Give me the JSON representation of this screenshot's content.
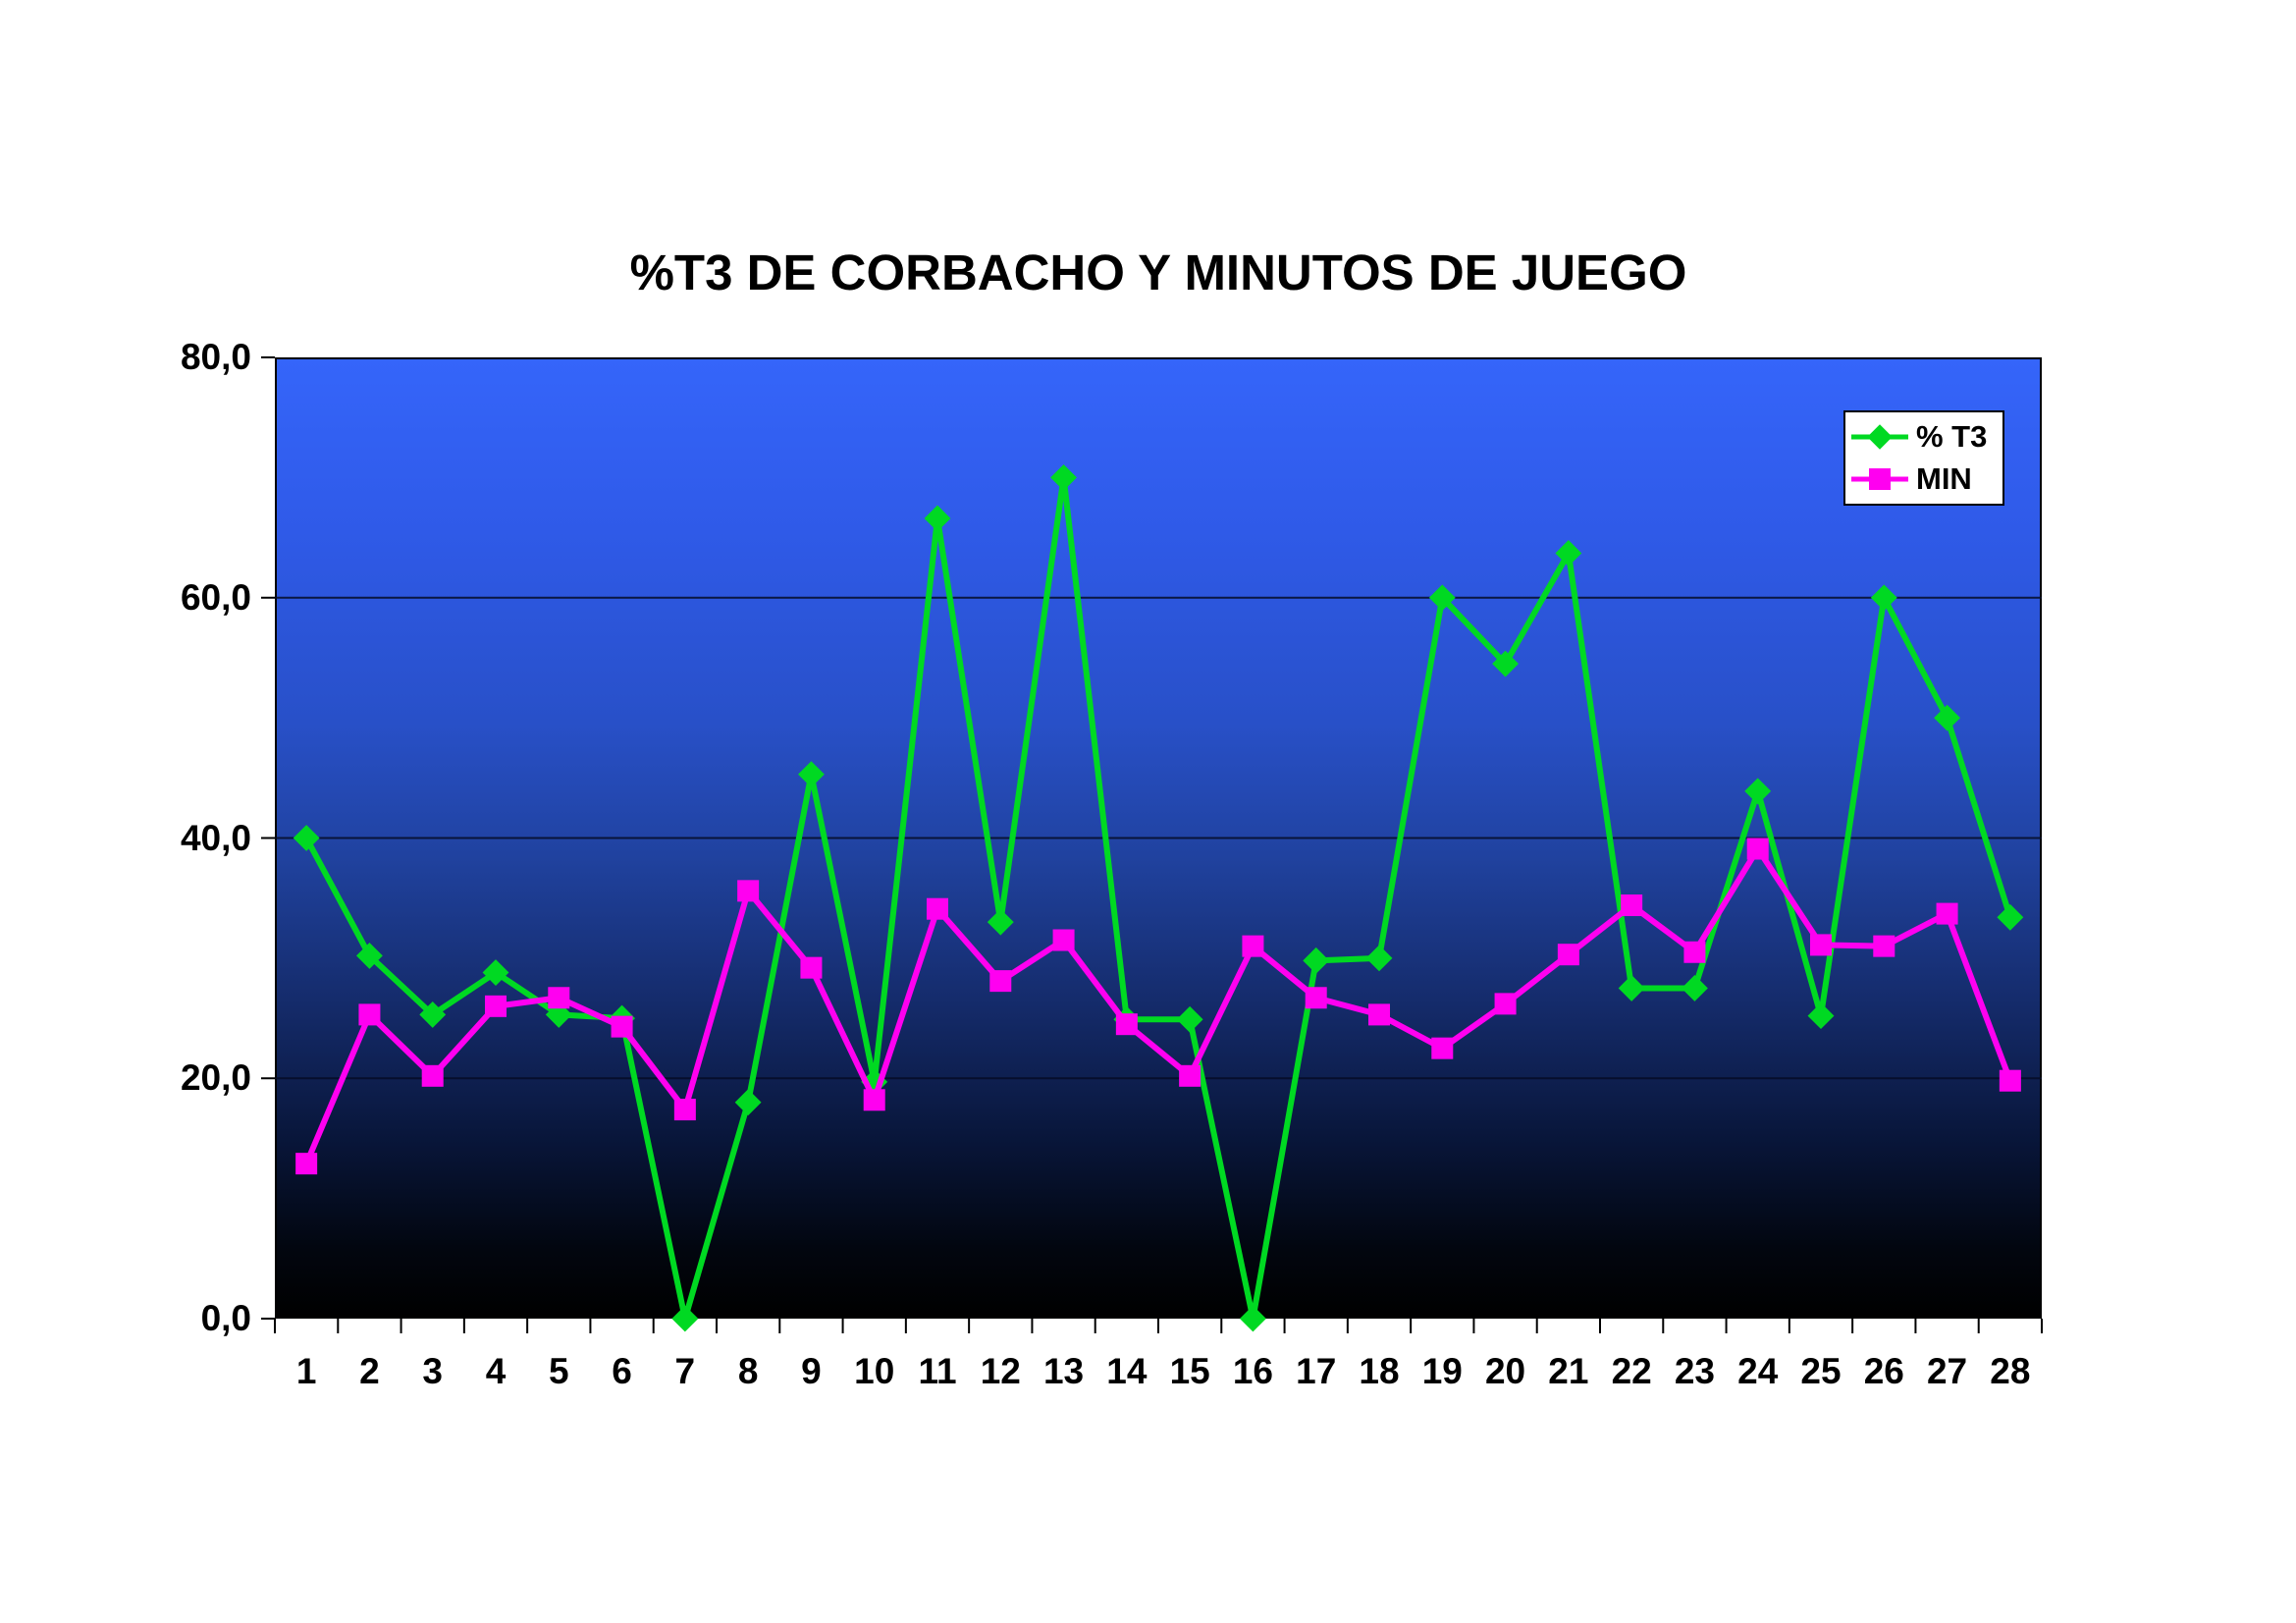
{
  "chart": {
    "title": "%T3 DE CORBACHO Y MINUTOS DE JUEGO"
  },
  "legend": {
    "entries": [
      {
        "label": "% T3",
        "marker": "diamond",
        "color": "#00d922"
      },
      {
        "label": "MIN",
        "marker": "square",
        "color": "#ff00f0"
      }
    ]
  },
  "chart_data": {
    "type": "line",
    "title": "%T3 DE CORBACHO Y MINUTOS DE JUEGO",
    "categories": [
      1,
      2,
      3,
      4,
      5,
      6,
      7,
      8,
      9,
      10,
      11,
      12,
      13,
      14,
      15,
      16,
      17,
      18,
      19,
      20,
      21,
      22,
      23,
      24,
      25,
      26,
      27,
      28
    ],
    "series": [
      {
        "name": "% T3",
        "color": "#00d922",
        "marker": "diamond",
        "values": [
          40.0,
          30.2,
          25.3,
          28.8,
          25.3,
          25.0,
          0.0,
          18.0,
          45.3,
          19.7,
          66.6,
          33.0,
          70.0,
          24.9,
          24.9,
          0.0,
          29.8,
          30.0,
          60.0,
          54.5,
          63.7,
          27.5,
          27.5,
          43.9,
          25.2,
          60.0,
          50.0,
          33.4
        ]
      },
      {
        "name": "MIN",
        "color": "#ff00f0",
        "marker": "square",
        "values": [
          12.9,
          25.3,
          20.2,
          26.0,
          26.7,
          24.3,
          17.4,
          35.6,
          29.2,
          18.2,
          34.1,
          28.1,
          31.5,
          24.5,
          20.2,
          31.0,
          26.7,
          25.3,
          22.5,
          26.2,
          30.3,
          34.4,
          30.5,
          39.1,
          31.1,
          31.0,
          33.7,
          19.8
        ]
      }
    ],
    "ylim": [
      0,
      80
    ],
    "yticks": [
      {
        "value": 0,
        "label": "0,0"
      },
      {
        "value": 20,
        "label": "20,0"
      },
      {
        "value": 40,
        "label": "40,0"
      },
      {
        "value": 60,
        "label": "60,0"
      },
      {
        "value": 80,
        "label": "80,0"
      }
    ],
    "grid": true,
    "legend_position": "top-right",
    "xlabel": "",
    "ylabel": ""
  }
}
